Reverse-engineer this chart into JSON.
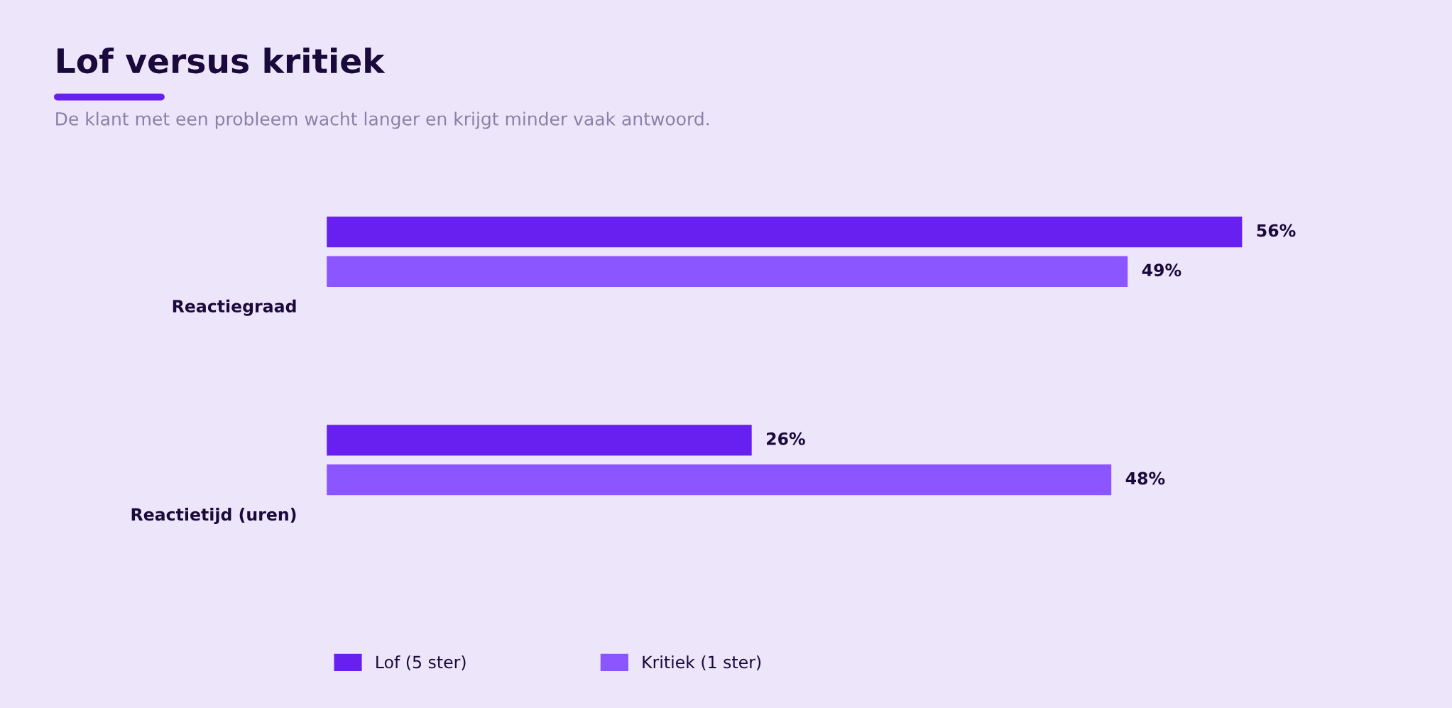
{
  "chart_data": {
    "type": "bar",
    "orientation": "horizontal",
    "title": "Lof versus kritiek",
    "subtitle": "De klant met een probleem wacht langer en krijgt minder vaak antwoord.",
    "categories": [
      "Reactiegraad",
      "Reactietijd (uren)"
    ],
    "series": [
      {
        "name": "Lof (5 ster)",
        "color": "#6720f0",
        "values": [
          56,
          26
        ],
        "value_labels": [
          "56%",
          "26%"
        ]
      },
      {
        "name": "Kritiek (1 ster)",
        "color": "#8b55ff",
        "values": [
          49,
          48
        ],
        "value_labels": [
          "49%",
          "48%"
        ]
      }
    ],
    "legend": "bottom",
    "grid": false
  }
}
